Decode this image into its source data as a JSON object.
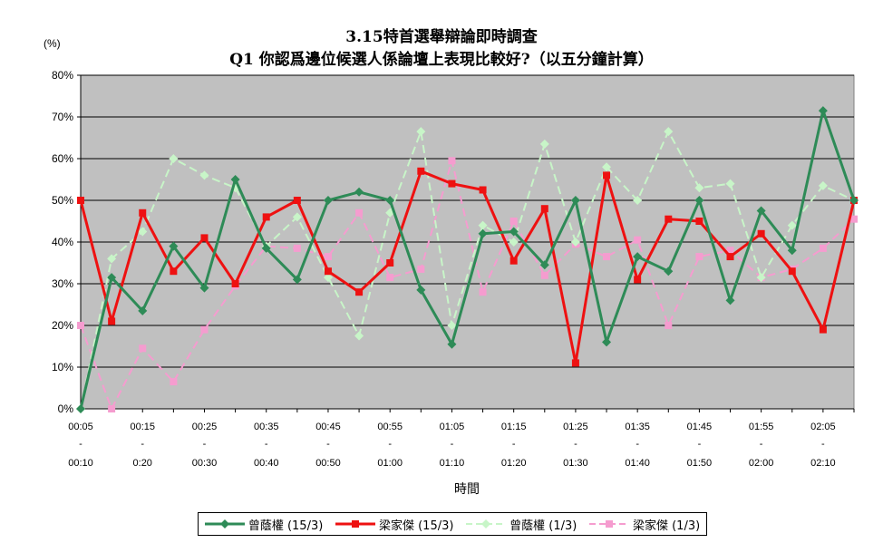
{
  "chart_data": {
    "type": "line",
    "title": "3.15特首選舉辯論即時調查",
    "subtitle": "Q1 你認爲邊位候選人係論壇上表現比較好?（以五分鐘計算）",
    "ylabel": "(%)",
    "xlabel": "時間",
    "ylim": [
      0,
      80
    ],
    "yticks": [
      "0%",
      "10%",
      "20%",
      "30%",
      "40%",
      "50%",
      "60%",
      "70%",
      "80%"
    ],
    "grid": true,
    "legend_position": "bottom",
    "categories": [
      "00:05-00:10",
      "00:10-00:15",
      "00:15-00:20",
      "00:20-00:25",
      "00:25-00:30",
      "00:30-00:35",
      "00:35-00:40",
      "00:40-00:45",
      "00:45-00:50",
      "00:50-00:55",
      "00:55-01:00",
      "01:00-01:05",
      "01:05-01:10",
      "01:10-01:15",
      "01:15-01:20",
      "01:20-01:25",
      "01:25-01:30",
      "01:30-01:35",
      "01:35-01:40",
      "01:40-01:45",
      "01:45-01:50",
      "01:50-01:55",
      "01:55-02:00",
      "02:00-02:05",
      "02:05-02:10",
      "02:10-02:15"
    ],
    "tick_labels_top": [
      "00:05",
      "00:15",
      "00:25",
      "00:35",
      "00:45",
      "00:55",
      "01:05",
      "01:15",
      "01:25",
      "01:35",
      "01:45",
      "01:55",
      "02:05"
    ],
    "tick_labels_bottom": [
      "00:10",
      "0:20",
      "00:30",
      "00:40",
      "00:50",
      "01:00",
      "01:10",
      "01:20",
      "01:30",
      "01:40",
      "01:50",
      "02:00",
      "02:10"
    ],
    "tick_separator": "-",
    "series": [
      {
        "name": "曾蔭權 (15/3)",
        "color": "#2e8b57",
        "marker": "diamond",
        "dash": false,
        "values": [
          0,
          31.5,
          23.5,
          39,
          29,
          55,
          38.5,
          31,
          50,
          52,
          50,
          28.5,
          15.5,
          42,
          42.5,
          34.5,
          50,
          16,
          36.5,
          33,
          50,
          26,
          47.5,
          38,
          71.5,
          50
        ]
      },
      {
        "name": "梁家傑 (15/3)",
        "color": "#ee1111",
        "marker": "square",
        "dash": false,
        "values": [
          50,
          21,
          47,
          33,
          41,
          30,
          46,
          50,
          33,
          28,
          35,
          57,
          54,
          52.5,
          35.5,
          48,
          11,
          56,
          31,
          45.5,
          45,
          36.5,
          42,
          33,
          19,
          50
        ]
      },
      {
        "name": "曾蔭權 (1/3)",
        "color": "#c8f5c8",
        "marker": "diamond",
        "dash": true,
        "values": [
          0,
          36,
          42.5,
          60,
          56,
          53,
          39,
          46,
          31.5,
          17.5,
          47,
          66.5,
          20,
          44,
          40,
          63.5,
          40,
          58,
          50,
          66.5,
          53,
          54,
          31.5,
          44,
          53.5,
          50
        ]
      },
      {
        "name": "梁家傑 (1/3)",
        "color": "#f59ccf",
        "marker": "square",
        "dash": true,
        "values": [
          20,
          0,
          14.5,
          6.5,
          19,
          29.5,
          39,
          38.5,
          36.5,
          47,
          31.5,
          33.5,
          59.5,
          28,
          45,
          32,
          39.5,
          36.5,
          40.5,
          20,
          36.5,
          38,
          31.5,
          33.5,
          38.5,
          45.5
        ]
      }
    ]
  }
}
